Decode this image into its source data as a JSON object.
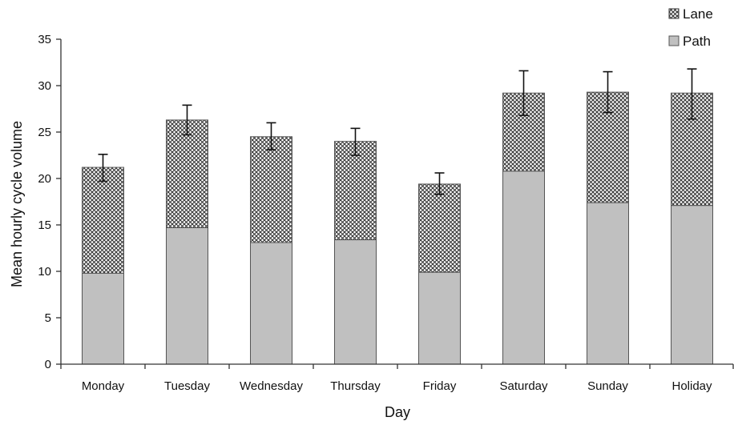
{
  "chart_data": {
    "type": "bar",
    "stacked": true,
    "categories": [
      "Monday",
      "Tuesday",
      "Wednesday",
      "Thursday",
      "Friday",
      "Saturday",
      "Sunday",
      "Holiday"
    ],
    "series": [
      {
        "name": "Path",
        "values": [
          9.8,
          14.7,
          13.1,
          13.4,
          9.9,
          20.8,
          17.4,
          17.1
        ],
        "color": "#c0c0c0",
        "pattern": "solid"
      },
      {
        "name": "Lane",
        "values": [
          11.4,
          11.6,
          11.4,
          10.6,
          9.5,
          8.4,
          11.9,
          12.1
        ],
        "color": "#ffffff",
        "pattern": "crosshatch"
      }
    ],
    "totals": [
      21.2,
      26.3,
      24.5,
      24.0,
      19.4,
      29.2,
      29.3,
      29.2
    ],
    "error_bars": {
      "low": [
        19.7,
        24.7,
        23.1,
        22.5,
        18.3,
        26.8,
        27.1,
        26.4
      ],
      "high": [
        22.6,
        27.9,
        26.0,
        25.4,
        20.6,
        31.6,
        31.5,
        31.8
      ]
    },
    "xlabel": "Day",
    "ylabel": "Mean hourly cycle volume",
    "ylim": [
      0,
      35
    ],
    "yticks": [
      0,
      5,
      10,
      15,
      20,
      25,
      30,
      35
    ],
    "legend": {
      "position": "top-right",
      "entries": [
        "Lane",
        "Path"
      ]
    },
    "grid": false
  }
}
